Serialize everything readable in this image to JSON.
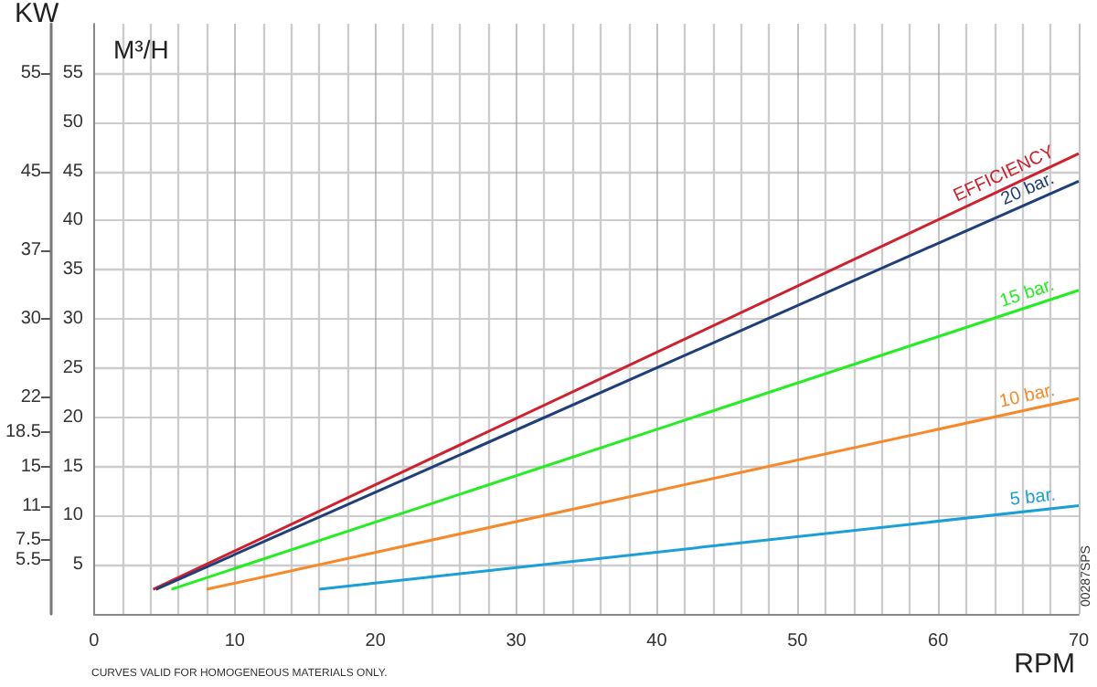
{
  "chart_data": {
    "type": "line",
    "xlabel": "RPM",
    "ylabel": "M³/H",
    "y2label": "KW",
    "xlim": [
      0,
      70
    ],
    "xticks": [
      0,
      10,
      20,
      30,
      40,
      50,
      60,
      70
    ],
    "ylim": [
      0,
      60
    ],
    "yticks": [
      5,
      10,
      15,
      20,
      25,
      30,
      35,
      40,
      45,
      50,
      55
    ],
    "y2lim": [
      0,
      60
    ],
    "y2ticks": [
      5.5,
      7.5,
      11,
      15,
      18.5,
      22,
      30,
      37,
      45,
      55
    ],
    "grid": true,
    "legend": false,
    "marker": "none",
    "line_style": "solid",
    "series": [
      {
        "name": "EFFICIENCY",
        "color": "#d0202e",
        "x": [
          4.2,
          70
        ],
        "values": [
          2.5,
          46.8
        ]
      },
      {
        "name": "20 bar.",
        "color": "#1f3f7a",
        "x": [
          4.4,
          70
        ],
        "values": [
          2.5,
          44
        ]
      },
      {
        "name": "15 bar.",
        "color": "#22ee22",
        "x": [
          5.5,
          70
        ],
        "values": [
          2.5,
          32.9
        ]
      },
      {
        "name": "10 bar.",
        "color": "#f7892a",
        "x": [
          8,
          70
        ],
        "values": [
          2.5,
          21.9
        ]
      },
      {
        "name": "5 bar.",
        "color": "#1a9fd6",
        "x": [
          16,
          70
        ],
        "values": [
          2.5,
          11
        ]
      }
    ],
    "annotations": [
      "CURVES VALID FOR HOMOGENEOUS MATERIALS ONLY.",
      "00287SPS"
    ]
  }
}
